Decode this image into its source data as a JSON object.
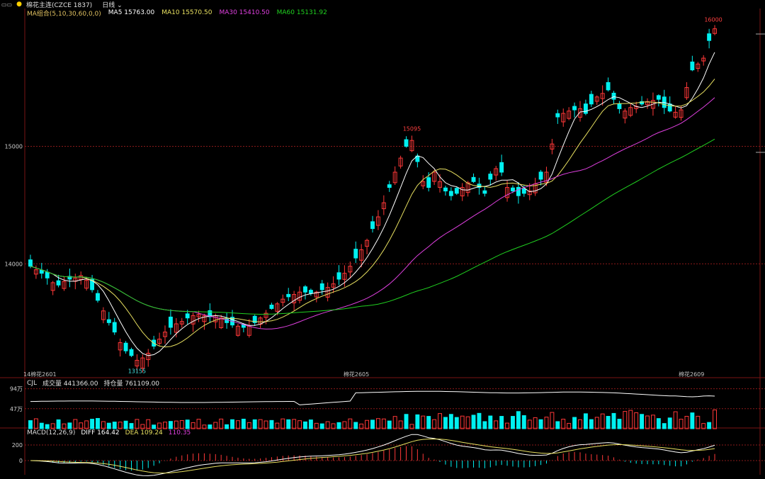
{
  "window": {
    "menu_icon": "window-controls-icon",
    "title": "棉花主连(CZCE 1837)",
    "period": "日线"
  },
  "ma_legend": {
    "label": "MA组合(5,10,30,60,0,0)",
    "ma5": "MA5 15763.00",
    "ma10": "MA10 15570.50",
    "ma30": "MA30 15410.50",
    "ma60": "MA60 15131.92"
  },
  "colors": {
    "up": "#ff3838",
    "down": "#00f0f0",
    "ma5": "#ffffff",
    "ma10": "#e8e060",
    "ma30": "#e040e0",
    "ma60": "#20d020",
    "grid": "#7a1414",
    "hline": "#8a1a1a"
  },
  "price_axis": {
    "label_15000": "15000",
    "label_14000": "14000"
  },
  "annotations": {
    "high_1": "16000",
    "high_2": "15095",
    "low_1": "13155"
  },
  "time_axis": {
    "start": "14棉花2601",
    "mid": "棉花2605",
    "end": "棉花2609"
  },
  "volume_panel": {
    "label": "CJL",
    "vol_text": "成交量 441366.00",
    "oi_text": "持仓量 761109.00",
    "tick_top": "94万",
    "tick_mid": "47万"
  },
  "macd_panel": {
    "label": "MACD(12,26,9)",
    "diff": "DIFF 164.42",
    "dea": "DEA 109.24",
    "macd": "110.35",
    "tick_200": "200",
    "tick_0": "0"
  },
  "chart_data": {
    "type": "candlestick",
    "title": "棉花主连(CZCE 1837) 日线",
    "ylim": [
      13050,
      16100
    ],
    "yticks": [
      14000,
      15000
    ],
    "price_marks": {
      "high": 16000,
      "mid_high": 15095,
      "low": 13155
    },
    "ma_last": {
      "MA5": 15763.0,
      "MA10": 15570.5,
      "MA30": 15410.5,
      "MA60": 15131.92
    },
    "volume_last": 441366.0,
    "open_interest_last": 761109.0,
    "volume_ticks": [
      470000,
      940000
    ],
    "macd_last": {
      "DIFF": 164.42,
      "DEA": 109.24,
      "MACD": 110.35
    },
    "macd_ticks": [
      0,
      200
    ],
    "close_path": [
      13980,
      13950,
      13920,
      13880,
      13840,
      13820,
      13850,
      13870,
      13880,
      13900,
      13860,
      13780,
      13690,
      13600,
      13500,
      13420,
      13330,
      13260,
      13220,
      13180,
      13200,
      13240,
      13300,
      13360,
      13420,
      13460,
      13490,
      13510,
      13540,
      13560,
      13570,
      13560,
      13550,
      13560,
      13540,
      13500,
      13480,
      13470,
      13460,
      13470,
      13500,
      13540,
      13580,
      13620,
      13660,
      13700,
      13720,
      13740,
      13760,
      13760,
      13750,
      13760,
      13780,
      13800,
      13830,
      13870,
      13920,
      13980,
      14050,
      14120,
      14200,
      14300,
      14400,
      14520,
      14650,
      14780,
      14900,
      15000,
      15050,
      14870,
      14700,
      14650,
      14780,
      14700,
      14620,
      14580,
      14600,
      14650,
      14690,
      14700,
      14650,
      14600,
      14720,
      14810,
      14780,
      14650,
      14620,
      14580,
      14600,
      14620,
      14680,
      14720,
      14780,
      15020,
      15250,
      15280,
      15300,
      15310,
      15320,
      15280,
      15360,
      15420,
      15450,
      15480,
      15400,
      15320,
      15300,
      15330,
      15340,
      15360,
      15380,
      15390,
      15400,
      15330,
      15300,
      15290,
      15310,
      15500,
      15650,
      15700,
      15750,
      15900,
      16000
    ]
  }
}
